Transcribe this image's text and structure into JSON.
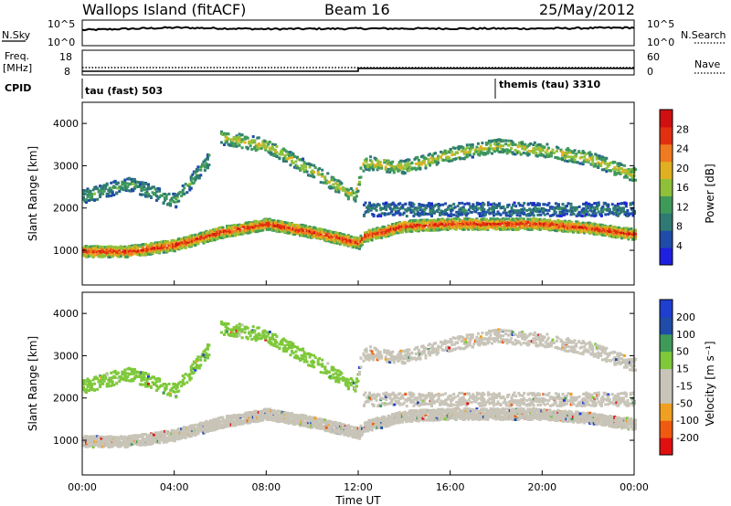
{
  "header": {
    "site_title": "Wallops Island (fitACF)",
    "beam": "Beam 16",
    "date": "25/May/2012"
  },
  "strip_labels": {
    "nsky": "N.Sky",
    "nsearch": "N.Search",
    "freq_line1": "Freq.",
    "freq_line2": "[MHz]",
    "nave": "Nave",
    "cpid": "CPID"
  },
  "colors": {
    "power_scale": [
      "#1f1fe0",
      "#1f4ca8",
      "#2f7a72",
      "#3f9a5a",
      "#8fc03a",
      "#e0b020",
      "#f07a20",
      "#e03010",
      "#d01010"
    ],
    "velocity_scale": [
      "#e01010",
      "#f05a10",
      "#f0a020",
      "#c8c4b8",
      "#c8c4b8",
      "#7ec83a",
      "#3f9a5a",
      "#1f4ca8",
      "#1f3fd0"
    ]
  },
  "chart_data": [
    {
      "type": "line",
      "name": "nsky-nsearch-strip",
      "left_ticks": [
        "10^5",
        "10^0"
      ],
      "right_ticks": [
        "10^5",
        "10^0"
      ],
      "x": [
        "00:00",
        "04:00",
        "08:00",
        "12:00",
        "16:00",
        "20:00",
        "00:00"
      ],
      "series": [
        {
          "name": "N.Sky",
          "values_log10": [
            3.3,
            3.8,
            3.5,
            3.6,
            3.6,
            3.6,
            3.8
          ]
        }
      ]
    },
    {
      "type": "line",
      "name": "freq-nave-strip",
      "left_ticks": [
        "18",
        "8"
      ],
      "right_ticks": [
        "60",
        "0"
      ],
      "series": [
        {
          "name": "Freq. [MHz]",
          "x": [
            0,
            12,
            12,
            24
          ],
          "values": [
            10.5,
            10.5,
            12.5,
            12.5
          ]
        },
        {
          "name": "Nave",
          "values": [
            8,
            8,
            8,
            8
          ]
        }
      ]
    },
    {
      "type": "table",
      "name": "cpid-strip",
      "segments": [
        {
          "start_hour": 0,
          "label": "tau (fast) 503"
        },
        {
          "start_hour": 18,
          "label": "themis (tau) 3310"
        }
      ]
    },
    {
      "type": "heatmap",
      "name": "power-panel",
      "ylabel": "Slant Range [km]",
      "y_ticks": [
        "1000",
        "2000",
        "3000",
        "4000"
      ],
      "ylim": [
        180,
        4500
      ],
      "x_hours": [
        0,
        24
      ],
      "colorbar": {
        "label": "Power [dB]",
        "ticks": [
          "4",
          "8",
          "12",
          "16",
          "20",
          "24",
          "28"
        ],
        "range": [
          0,
          30
        ]
      },
      "bands": [
        {
          "hour": [
            0,
            2,
            4,
            6,
            8,
            10,
            12,
            12.2,
            14,
            16,
            18,
            20,
            22,
            24
          ],
          "range_km": [
            1000,
            1000,
            1150,
            1450,
            1650,
            1450,
            1200,
            1350,
            1600,
            1650,
            1650,
            1650,
            1550,
            1400
          ],
          "peak_db": 28
        },
        {
          "hour": [
            6,
            8,
            10,
            11.8,
            12.2,
            14,
            16,
            18,
            20,
            22,
            24
          ],
          "range_km": [
            3700,
            3500,
            2900,
            2300,
            3100,
            3000,
            3300,
            3500,
            3400,
            3200,
            2800
          ],
          "peak_db": 18
        },
        {
          "hour": [
            0,
            2,
            4,
            5.5
          ],
          "range_km": [
            2300,
            2600,
            2200,
            3200
          ],
          "peak_db": 12
        },
        {
          "hour": [
            12.2,
            16,
            20,
            24
          ],
          "range_km": [
            2000,
            2000,
            2000,
            2000
          ],
          "peak_db": 8
        }
      ]
    },
    {
      "type": "heatmap",
      "name": "velocity-panel",
      "ylabel": "Slant Range [km]",
      "xlabel": "Time UT",
      "x_ticks": [
        "00:00",
        "04:00",
        "08:00",
        "12:00",
        "16:00",
        "20:00",
        "00:00"
      ],
      "y_ticks": [
        "1000",
        "2000",
        "3000",
        "4000"
      ],
      "ylim": [
        180,
        4500
      ],
      "x_hours": [
        0,
        24
      ],
      "colorbar": {
        "label": "Velocity [m s⁻¹]",
        "ticks": [
          "-200",
          "-100",
          "-50",
          "-15",
          "15",
          "50",
          "100",
          "200"
        ],
        "range": [
          -250,
          250
        ]
      }
    }
  ]
}
